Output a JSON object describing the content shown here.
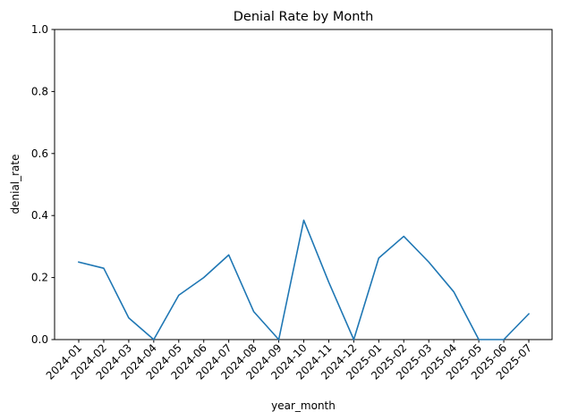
{
  "chart_data": {
    "type": "line",
    "title": "Denial Rate by Month",
    "xlabel": "year_month",
    "ylabel": "denial_rate",
    "ylim": [
      0,
      1.0
    ],
    "yticks": [
      "0.0",
      "0.2",
      "0.4",
      "0.6",
      "0.8",
      "1.0"
    ],
    "grid": false,
    "categories": [
      "2024-01",
      "2024-02",
      "2024-03",
      "2024-04",
      "2024-05",
      "2024-06",
      "2024-07",
      "2024-08",
      "2024-09",
      "2024-10",
      "2024-11",
      "2024-12",
      "2025-01",
      "2025-02",
      "2025-03",
      "2025-04",
      "2025-05",
      "2025-06",
      "2025-07"
    ],
    "series": [
      {
        "values": [
          0.25,
          0.23,
          0.07,
          0.0,
          0.143,
          0.2,
          0.273,
          0.09,
          0.0,
          0.385,
          0.185,
          0.0,
          0.263,
          0.333,
          0.25,
          0.154,
          0.0,
          0.0,
          0.083
        ],
        "color": "#1f77b4"
      }
    ]
  }
}
